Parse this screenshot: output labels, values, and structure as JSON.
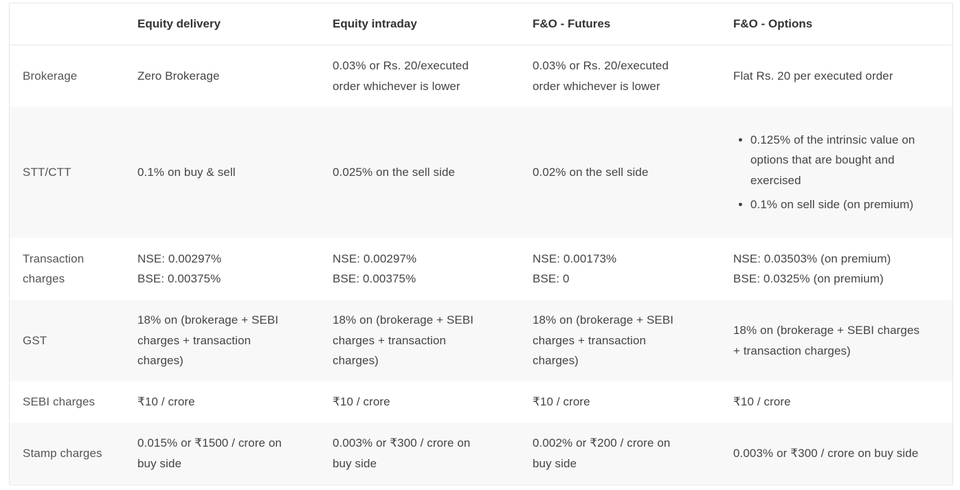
{
  "header": {
    "blank": "",
    "col1": "Equity delivery",
    "col2": "Equity intraday",
    "col3": "F&O - Futures",
    "col4": "F&O - Options"
  },
  "rows": {
    "brokerage": {
      "label": "Brokerage",
      "equity_delivery": "Zero Brokerage",
      "equity_intraday": [
        "0.03% or Rs. 20/executed",
        "order whichever is lower"
      ],
      "fo_futures": [
        "0.03% or Rs. 20/executed",
        "order whichever is lower"
      ],
      "fo_options": "Flat Rs. 20 per executed order"
    },
    "stt": {
      "label": "STT/CTT",
      "equity_delivery": "0.1% on buy & sell",
      "equity_intraday": "0.025% on the sell side",
      "fo_futures": "0.02% on the sell side",
      "fo_options": [
        "0.125% of the intrinsic value on options that are bought and exercised",
        "0.1% on sell side (on premium)"
      ]
    },
    "transaction": {
      "label": [
        "Transaction",
        "charges"
      ],
      "equity_delivery": [
        "NSE: 0.00297%",
        "BSE: 0.00375%"
      ],
      "equity_intraday": [
        "NSE: 0.00297%",
        "BSE: 0.00375%"
      ],
      "fo_futures": [
        "NSE: 0.00173%",
        "BSE: 0"
      ],
      "fo_options": [
        "NSE: 0.03503% (on premium)",
        "BSE: 0.0325% (on premium)"
      ]
    },
    "gst": {
      "label": "GST",
      "equity_delivery": [
        "18% on (brokerage + SEBI",
        "charges + transaction",
        "charges)"
      ],
      "equity_intraday": [
        "18% on (brokerage + SEBI",
        "charges + transaction",
        "charges)"
      ],
      "fo_futures": [
        "18% on (brokerage + SEBI",
        "charges + transaction",
        "charges)"
      ],
      "fo_options": [
        "18% on (brokerage + SEBI charges",
        "+ transaction charges)"
      ]
    },
    "sebi": {
      "label": "SEBI charges",
      "equity_delivery": "₹10 / crore",
      "equity_intraday": "₹10 / crore",
      "fo_futures": "₹10 / crore",
      "fo_options": "₹10 / crore"
    },
    "stamp": {
      "label": "Stamp charges",
      "equity_delivery": [
        "0.015% or ₹1500 / crore on",
        "buy side"
      ],
      "equity_intraday": [
        "0.003% or ₹300 / crore on",
        "buy side"
      ],
      "fo_futures": [
        "0.002% or ₹200 / crore on",
        "buy side"
      ],
      "fo_options": "0.003% or ₹300 / crore on buy side"
    }
  }
}
